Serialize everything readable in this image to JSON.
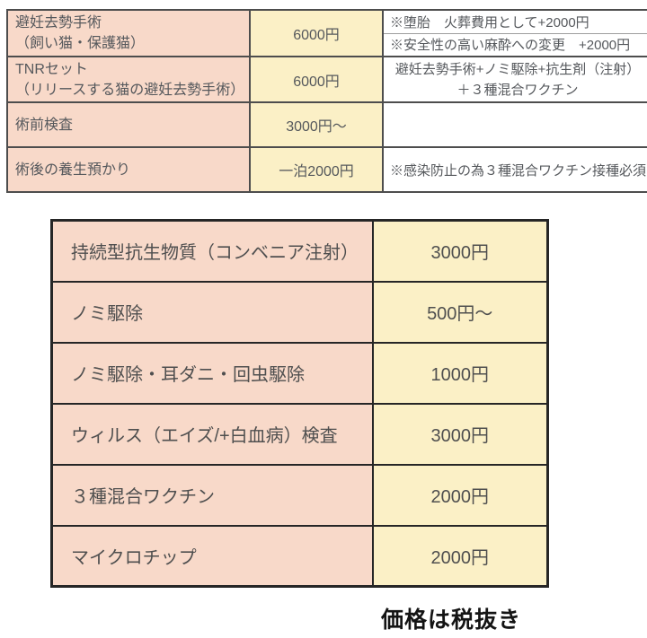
{
  "colors": {
    "service_column_bg": "#f8d9c9",
    "price_column_bg": "#fbf0c6",
    "notes_column_bg": "#ffffff",
    "surgery_table_border": "#4d4d4d",
    "options_table_border": "#262626",
    "table_text": "#55585c",
    "footer_text": "#141414"
  },
  "surgery_table": {
    "rows": [
      {
        "service": "避妊去勢手術",
        "service_sub": "（飼い猫・保護猫）",
        "price": "6000円",
        "notes": [
          "※堕胎　火葬費用として+2000円",
          "※安全性の高い麻酔への変更　+2000円"
        ]
      },
      {
        "service": "TNRセット",
        "service_sub": "（リリースする猫の避妊去勢手術）",
        "price": "6000円",
        "notes": [
          "避妊去勢手術+ノミ駆除+抗生剤（注射）",
          "＋３種混合ワクチン"
        ]
      },
      {
        "service": "術前検査",
        "service_sub": "",
        "price": "3000円〜",
        "notes": []
      },
      {
        "service": "術後の養生預かり",
        "service_sub": "",
        "price": "一泊2000円",
        "notes": [
          "※感染防止の為３種混合ワクチン接種必須"
        ]
      }
    ]
  },
  "options_table": {
    "rows": [
      {
        "service": "持続型抗生物質（コンベニア注射）",
        "price": "3000円"
      },
      {
        "service": "ノミ駆除",
        "price": "500円〜"
      },
      {
        "service": "ノミ駆除・耳ダニ・回虫駆除",
        "price": "1000円"
      },
      {
        "service": "ウィルス（エイズ/+白血病）検査",
        "price": "3000円"
      },
      {
        "service": "３種混合ワクチン",
        "price": "2000円"
      },
      {
        "service": "マイクロチップ",
        "price": "2000円"
      }
    ]
  },
  "footer": {
    "tax_note": "価格は税抜き"
  }
}
